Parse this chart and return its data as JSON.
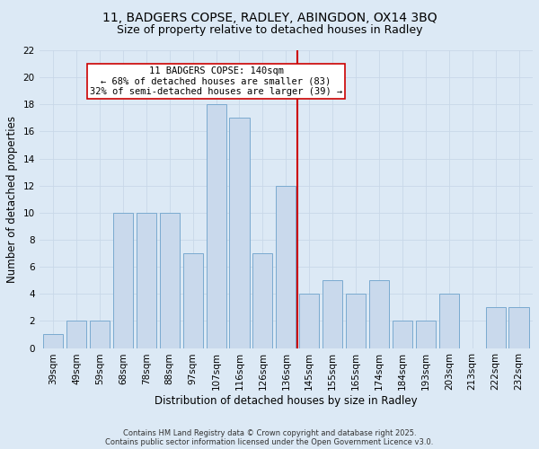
{
  "title1": "11, BADGERS COPSE, RADLEY, ABINGDON, OX14 3BQ",
  "title2": "Size of property relative to detached houses in Radley",
  "xlabel": "Distribution of detached houses by size in Radley",
  "ylabel": "Number of detached properties",
  "categories": [
    "39sqm",
    "49sqm",
    "59sqm",
    "68sqm",
    "78sqm",
    "88sqm",
    "97sqm",
    "107sqm",
    "116sqm",
    "126sqm",
    "136sqm",
    "145sqm",
    "155sqm",
    "165sqm",
    "174sqm",
    "184sqm",
    "193sqm",
    "203sqm",
    "213sqm",
    "222sqm",
    "232sqm"
  ],
  "values": [
    1,
    2,
    2,
    10,
    10,
    10,
    7,
    18,
    17,
    7,
    12,
    4,
    5,
    4,
    5,
    2,
    2,
    4,
    0,
    3,
    3
  ],
  "bar_color": "#c9d9ec",
  "bar_edge_color": "#7aaad0",
  "vline_color": "#cc0000",
  "annotation_title": "11 BADGERS COPSE: 140sqm",
  "annotation_line1": "← 68% of detached houses are smaller (83)",
  "annotation_line2": "32% of semi-detached houses are larger (39) →",
  "annotation_box_color": "#cc0000",
  "annotation_fill": "#ffffff",
  "ylim": [
    0,
    22
  ],
  "yticks": [
    0,
    2,
    4,
    6,
    8,
    10,
    12,
    14,
    16,
    18,
    20,
    22
  ],
  "grid_color": "#c8d8e8",
  "background_color": "#dce9f5",
  "footer_line1": "Contains HM Land Registry data © Crown copyright and database right 2025.",
  "footer_line2": "Contains public sector information licensed under the Open Government Licence v3.0.",
  "title_fontsize": 10,
  "subtitle_fontsize": 9,
  "axis_label_fontsize": 8.5,
  "tick_fontsize": 7.5,
  "annotation_fontsize": 7.5,
  "footer_fontsize": 6
}
